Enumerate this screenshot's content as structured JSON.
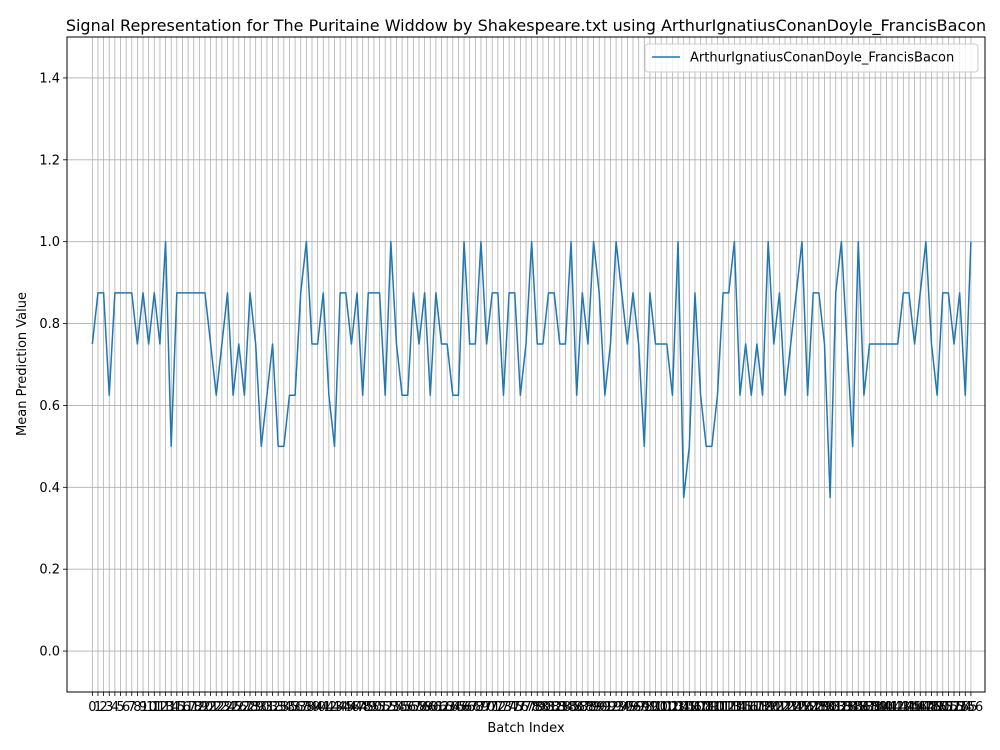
{
  "chart_data": {
    "type": "line",
    "title": "Signal Representation for The Puritaine Widdow by Shakespeare.txt using ArthurIgnatiusConanDoyle_FrancisBacon",
    "xlabel": "Batch Index",
    "ylabel": "Mean Prediction Value",
    "ylim": [
      -0.1,
      1.5
    ],
    "yticks": [
      0.0,
      0.2,
      0.4,
      0.6,
      0.8,
      1.0,
      1.2,
      1.4
    ],
    "xlim": [
      -4.5,
      158.5
    ],
    "grid": true,
    "legend_position": "top-right",
    "series_color": "#1f77b4",
    "series": [
      {
        "name": "ArthurIgnatiusConanDoyle_FrancisBacon",
        "values": [
          0.75,
          0.875,
          0.875,
          0.625,
          0.875,
          0.875,
          0.875,
          0.875,
          0.75,
          0.875,
          0.75,
          0.875,
          0.75,
          1.0,
          0.5,
          0.875,
          0.875,
          0.875,
          0.875,
          0.875,
          0.875,
          0.75,
          0.625,
          0.75,
          0.875,
          0.625,
          0.75,
          0.625,
          0.875,
          0.75,
          0.5,
          0.625,
          0.75,
          0.5,
          0.5,
          0.625,
          0.625,
          0.875,
          1.0,
          0.75,
          0.75,
          0.875,
          0.625,
          0.5,
          0.875,
          0.875,
          0.75,
          0.875,
          0.625,
          0.875,
          0.875,
          0.875,
          0.625,
          1.0,
          0.75,
          0.625,
          0.625,
          0.875,
          0.75,
          0.875,
          0.625,
          0.875,
          0.75,
          0.75,
          0.625,
          0.625,
          1.0,
          0.75,
          0.75,
          1.0,
          0.75,
          0.875,
          0.875,
          0.625,
          0.875,
          0.875,
          0.625,
          0.75,
          1.0,
          0.75,
          0.75,
          0.875,
          0.875,
          0.75,
          0.75,
          1.0,
          0.625,
          0.875,
          0.75,
          1.0,
          0.875,
          0.625,
          0.75,
          1.0,
          0.875,
          0.75,
          0.875,
          0.75,
          0.5,
          0.875,
          0.75,
          0.75,
          0.75,
          0.625,
          1.0,
          0.375,
          0.5,
          0.875,
          0.625,
          0.5,
          0.5,
          0.625,
          0.875,
          0.875,
          1.0,
          0.625,
          0.75,
          0.625,
          0.75,
          0.625,
          1.0,
          0.75,
          0.875,
          0.625,
          0.75,
          0.875,
          1.0,
          0.625,
          0.875,
          0.875,
          0.75,
          0.375,
          0.875,
          1.0,
          0.75,
          0.5,
          1.0,
          0.625,
          0.75,
          0.75,
          0.75,
          0.75,
          0.75,
          0.75,
          0.875,
          0.875,
          0.75,
          0.875,
          1.0,
          0.75,
          0.625,
          0.875,
          0.875,
          0.75,
          0.875,
          0.625,
          1.0
        ]
      }
    ]
  }
}
